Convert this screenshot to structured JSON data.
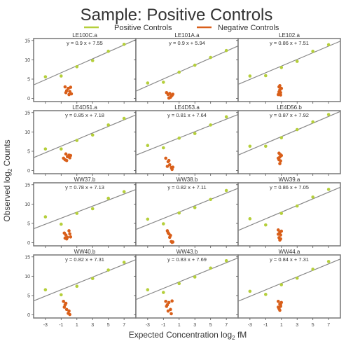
{
  "chart_data": {
    "type": "scatter",
    "title": "Sample: Positive Controls",
    "xlabel": "Expected Concentration log",
    "xlabel_sub": "2",
    "xlabel_suffix": " fM",
    "ylabel": "Observed log",
    "ylabel_sub": "2",
    "ylabel_suffix": " Counts",
    "xlim": [
      -4.5,
      8.5
    ],
    "ylim": [
      -0.8,
      15.5
    ],
    "xticks": [
      -3,
      -1,
      1,
      3,
      5,
      7
    ],
    "yticks": [
      0,
      5,
      10,
      15
    ],
    "legend": {
      "position": "top-center",
      "entries": [
        {
          "name": "Positive Controls",
          "color": "#b5cf3b"
        },
        {
          "name": "Negative Controls",
          "color": "#d95f1a"
        }
      ]
    },
    "colors": {
      "positive": "#b5cf3b",
      "negative": "#d95f1a",
      "fit_line": "#888888",
      "frame": "#777777"
    },
    "positive_x": [
      -3,
      -1,
      1,
      3,
      5,
      7
    ],
    "panels": [
      {
        "name": "LE100C.a",
        "equation": "y = 0.9 x + 7.55",
        "slope": 0.9,
        "intercept": 7.55,
        "positive_y": [
          5.6,
          5.8,
          8.2,
          9.8,
          12.2,
          14.0
        ],
        "negative": [
          [
            -0.5,
            3.0
          ],
          [
            -0.3,
            2.0
          ],
          [
            -0.1,
            2.6
          ],
          [
            0.1,
            1.8
          ],
          [
            -0.4,
            1.5
          ],
          [
            0.2,
            2.9
          ],
          [
            0.3,
            1.2
          ],
          [
            0.0,
            1.0
          ]
        ]
      },
      {
        "name": "LE101A.a",
        "equation": "y = 0.9 x + 5.94",
        "slope": 0.9,
        "intercept": 5.94,
        "positive_y": [
          4.0,
          4.2,
          6.8,
          8.6,
          10.6,
          12.4
        ],
        "negative": [
          [
            -0.6,
            1.5
          ],
          [
            -0.4,
            1.0
          ],
          [
            -0.2,
            1.3
          ],
          [
            0.0,
            0.6
          ],
          [
            -0.1,
            0.3
          ],
          [
            0.1,
            0.8
          ],
          [
            -0.3,
            0.1
          ],
          [
            0.2,
            1.1
          ]
        ]
      },
      {
        "name": "LE102.a",
        "equation": "y = 0.86 x + 7.51",
        "slope": 0.86,
        "intercept": 7.51,
        "positive_y": [
          5.8,
          5.9,
          8.0,
          9.6,
          12.2,
          13.9
        ],
        "negative": [
          [
            0.7,
            3.0
          ],
          [
            0.8,
            2.2
          ],
          [
            0.9,
            1.5
          ],
          [
            0.6,
            1.0
          ],
          [
            1.0,
            2.6
          ],
          [
            0.8,
            3.3
          ],
          [
            0.7,
            1.7
          ],
          [
            0.9,
            0.9
          ]
        ]
      },
      {
        "name": "LE4D51.a",
        "equation": "y = 0.85 x + 7.18",
        "slope": 0.85,
        "intercept": 7.18,
        "positive_y": [
          5.6,
          5.6,
          7.8,
          9.2,
          11.8,
          13.5
        ],
        "negative": [
          [
            -0.7,
            3.2
          ],
          [
            -0.4,
            4.3
          ],
          [
            -0.2,
            3.6
          ],
          [
            0.0,
            4.0
          ],
          [
            -0.5,
            2.8
          ],
          [
            0.1,
            3.3
          ],
          [
            -0.3,
            2.6
          ],
          [
            0.2,
            3.9
          ]
        ]
      },
      {
        "name": "LE4D53.a",
        "equation": "y = 0.81 x + 7.64",
        "slope": 0.81,
        "intercept": 7.64,
        "positive_y": [
          6.5,
          5.9,
          8.4,
          9.6,
          11.8,
          13.9
        ],
        "negative": [
          [
            -0.7,
            3.2
          ],
          [
            -0.4,
            2.3
          ],
          [
            -0.2,
            1.5
          ],
          [
            0.0,
            0.8
          ],
          [
            -0.5,
            1.1
          ],
          [
            0.1,
            0.3
          ],
          [
            -0.3,
            2.6
          ],
          [
            0.2,
            0.9
          ]
        ]
      },
      {
        "name": "LE4D56.b",
        "equation": "y = 0.87 x + 7.92",
        "slope": 0.87,
        "intercept": 7.92,
        "positive_y": [
          6.3,
          6.3,
          8.5,
          10.6,
          12.6,
          14.5
        ],
        "negative": [
          [
            0.7,
            4.5
          ],
          [
            0.8,
            3.5
          ],
          [
            0.9,
            2.5
          ],
          [
            0.6,
            3.2
          ],
          [
            1.0,
            3.9
          ],
          [
            0.8,
            1.8
          ],
          [
            0.7,
            2.8
          ],
          [
            0.9,
            4.1
          ]
        ]
      },
      {
        "name": "WW37.b",
        "equation": "y = 0.78 x + 7.13",
        "slope": 0.78,
        "intercept": 7.13,
        "positive_y": [
          6.7,
          4.8,
          7.6,
          8.8,
          11.5,
          13.2
        ],
        "negative": [
          [
            -0.6,
            2.5
          ],
          [
            -0.4,
            2.0
          ],
          [
            -0.2,
            1.4
          ],
          [
            0.0,
            3.1
          ],
          [
            -0.5,
            1.2
          ],
          [
            0.1,
            2.3
          ],
          [
            -0.3,
            1.0
          ],
          [
            0.2,
            1.5
          ]
        ]
      },
      {
        "name": "WW38.b",
        "equation": "y = 0.82 x + 7.11",
        "slope": 0.82,
        "intercept": 7.11,
        "positive_y": [
          6.1,
          4.9,
          7.7,
          9.1,
          11.2,
          13.5
        ],
        "negative": [
          [
            -0.5,
            3.1
          ],
          [
            -0.3,
            2.3
          ],
          [
            -0.2,
            1.4
          ],
          [
            0.0,
            0.3
          ],
          [
            -0.4,
            2.6
          ],
          [
            0.1,
            0.1
          ],
          [
            -0.1,
            1.9
          ],
          [
            0.2,
            0.2
          ]
        ]
      },
      {
        "name": "WW39.a",
        "equation": "y = 0.86 x + 7.05",
        "slope": 0.86,
        "intercept": 7.05,
        "positive_y": [
          6.2,
          4.6,
          7.6,
          9.5,
          11.8,
          13.8
        ],
        "negative": [
          [
            0.6,
            3.3
          ],
          [
            0.8,
            2.7
          ],
          [
            0.9,
            2.0
          ],
          [
            0.7,
            1.3
          ],
          [
            1.0,
            3.0
          ],
          [
            0.8,
            0.7
          ],
          [
            0.6,
            2.2
          ],
          [
            0.9,
            1.0
          ]
        ]
      },
      {
        "name": "WW40.b",
        "equation": "y = 0.82 x + 7.31",
        "slope": 0.82,
        "intercept": 7.31,
        "positive_y": [
          6.5,
          5.2,
          7.4,
          9.4,
          11.6,
          13.6
        ],
        "negative": [
          [
            -0.7,
            3.5
          ],
          [
            -0.5,
            2.6
          ],
          [
            -0.3,
            1.4
          ],
          [
            -0.1,
            0.4
          ],
          [
            -0.6,
            2.0
          ],
          [
            0.1,
            0.1
          ],
          [
            -0.4,
            3.0
          ],
          [
            0.0,
            1.0
          ]
        ]
      },
      {
        "name": "WW43.b",
        "equation": "y = 0.83 x + 7.69",
        "slope": 0.83,
        "intercept": 7.69,
        "positive_y": [
          6.5,
          5.8,
          8.1,
          9.8,
          12.1,
          14.0
        ],
        "negative": [
          [
            -0.7,
            3.5
          ],
          [
            -0.5,
            2.6
          ],
          [
            -0.3,
            3.2
          ],
          [
            -0.1,
            1.4
          ],
          [
            -0.6,
            2.2
          ],
          [
            0.1,
            3.6
          ],
          [
            -0.4,
            1.0
          ],
          [
            0.0,
            0.3
          ]
        ]
      },
      {
        "name": "WW44.a",
        "equation": "y = 0.84 x + 7.31",
        "slope": 0.84,
        "intercept": 7.31,
        "positive_y": [
          6.1,
          5.3,
          7.8,
          9.5,
          11.8,
          13.8
        ],
        "negative": [
          [
            0.6,
            3.5
          ],
          [
            0.8,
            2.8
          ],
          [
            0.9,
            2.2
          ],
          [
            0.7,
            1.6
          ],
          [
            1.0,
            3.2
          ],
          [
            0.8,
            1.2
          ],
          [
            0.6,
            2.0
          ],
          [
            0.9,
            2.6
          ]
        ]
      }
    ]
  }
}
